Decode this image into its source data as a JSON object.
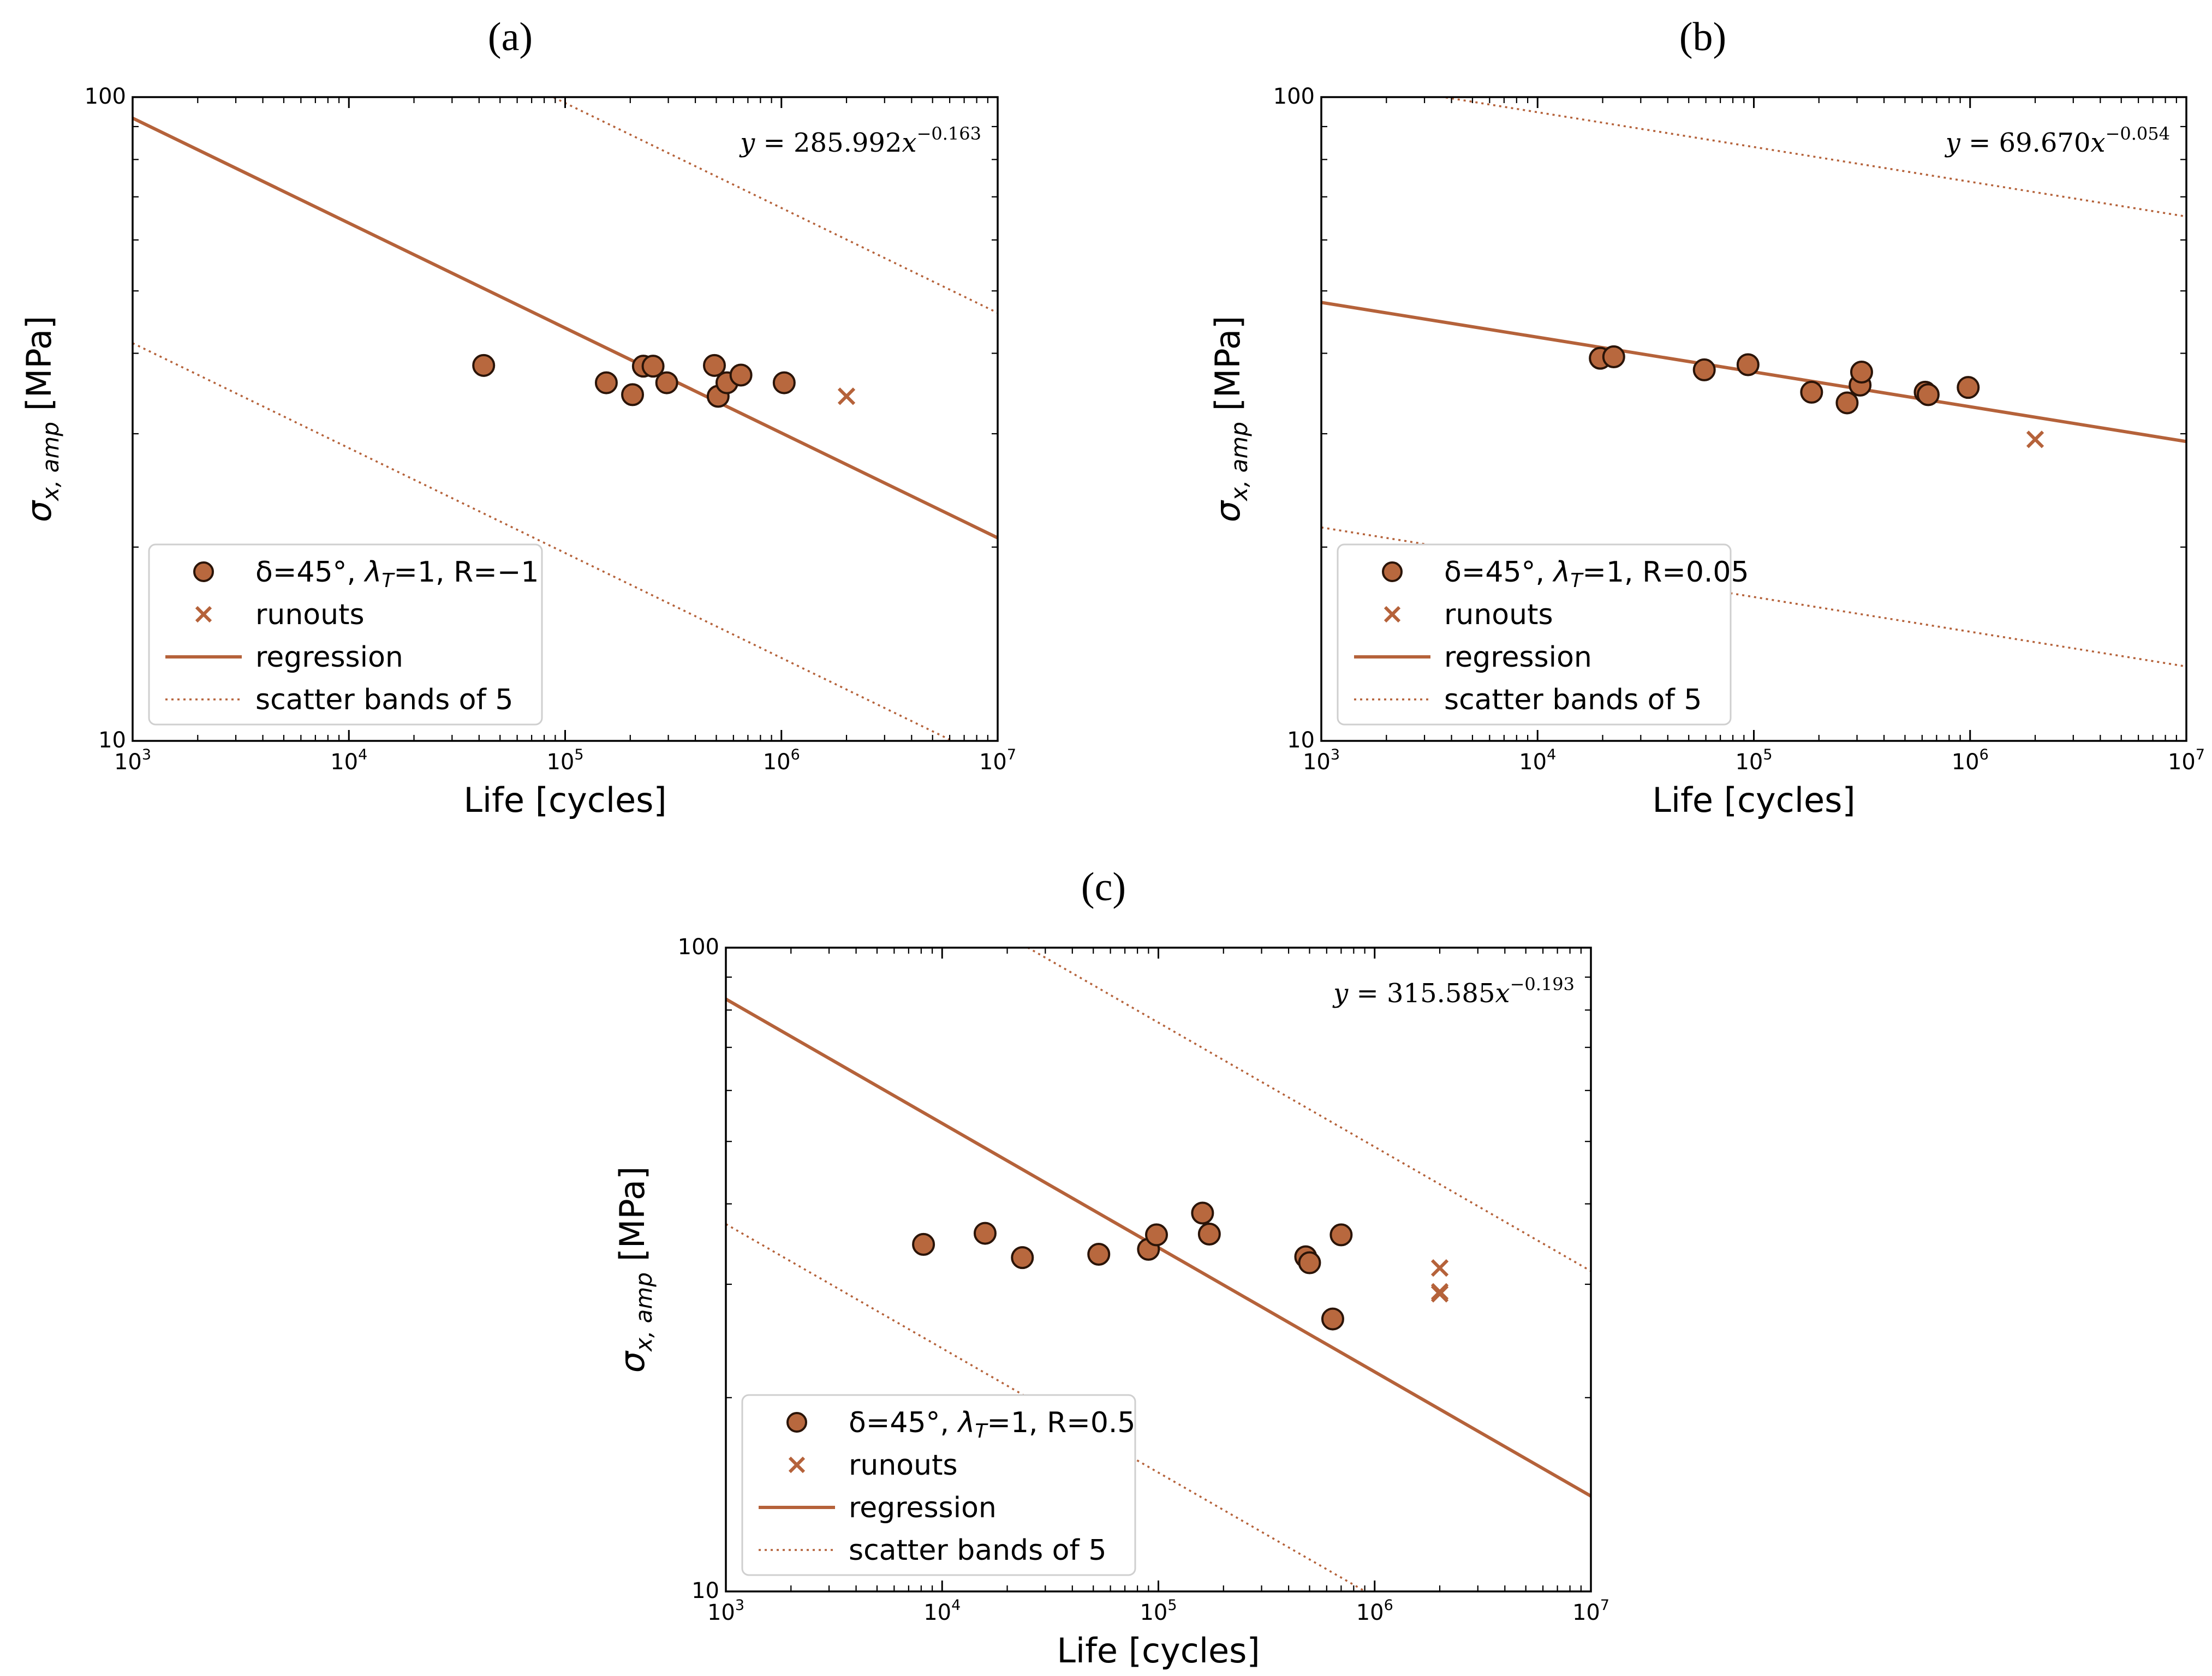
{
  "figure": {
    "series_color": "#b5623a",
    "point_fill": "#b8683e",
    "point_edge": "#2a1408"
  },
  "chart_data": [
    {
      "type": "scatter",
      "panel_label": "(a)",
      "xscale": "log",
      "yscale": "log",
      "xlim": [
        1000,
        10000000
      ],
      "ylim": [
        10,
        100
      ],
      "xlabel": "Life [cycles]",
      "ylabel": {
        "base": "σ",
        "sub": "x, amp",
        "unit": " [MPa]"
      },
      "xticks": [
        {
          "base": "10",
          "exp": "3"
        },
        {
          "base": "10",
          "exp": "4"
        },
        {
          "base": "10",
          "exp": "5"
        },
        {
          "base": "10",
          "exp": "6"
        },
        {
          "base": "10",
          "exp": "7"
        }
      ],
      "yticks": [
        "100",
        "10"
      ],
      "equation": {
        "lhs": "y",
        "mid": " = 285.992",
        "var": "x",
        "exp": "−0.163"
      },
      "regression": {
        "a": 285.992,
        "b": -0.163,
        "scatter_factor": 5
      },
      "series": [
        {
          "name": "tests",
          "label": {
            "pre": "δ=45°, ",
            "sym": "λ",
            "sub": "T",
            "post": "=1, R=−1"
          },
          "points": [
            [
              42000,
              38.3
            ],
            [
              155000,
              36.0
            ],
            [
              205000,
              34.5
            ],
            [
              230000,
              38.2
            ],
            [
              255000,
              38.2
            ],
            [
              295000,
              36.0
            ],
            [
              490000,
              38.3
            ],
            [
              510000,
              34.3
            ],
            [
              560000,
              36.0
            ],
            [
              650000,
              37.0
            ],
            [
              1030000,
              36.0
            ]
          ]
        },
        {
          "name": "runouts",
          "label": "runouts",
          "points": [
            [
              2000000,
              34.3
            ]
          ]
        }
      ],
      "legend": {
        "regression": "regression",
        "bands": "scatter bands of 5",
        "position": "lower-left"
      }
    },
    {
      "type": "scatter",
      "panel_label": "(b)",
      "xscale": "log",
      "yscale": "log",
      "xlim": [
        1000,
        10000000
      ],
      "ylim": [
        10,
        100
      ],
      "xlabel": "Life [cycles]",
      "ylabel": {
        "base": "σ",
        "sub": "x, amp",
        "unit": " [MPa]"
      },
      "xticks": [
        {
          "base": "10",
          "exp": "3"
        },
        {
          "base": "10",
          "exp": "4"
        },
        {
          "base": "10",
          "exp": "5"
        },
        {
          "base": "10",
          "exp": "6"
        },
        {
          "base": "10",
          "exp": "7"
        }
      ],
      "yticks": [
        "100",
        "10"
      ],
      "equation": {
        "lhs": "y",
        "mid": " = 69.670",
        "var": "x",
        "exp": "−0.054"
      },
      "regression": {
        "a": 69.67,
        "b": -0.054,
        "scatter_factor": 5
      },
      "series": [
        {
          "name": "tests",
          "label": {
            "pre": "δ=45°, ",
            "sym": "λ",
            "sub": "T",
            "post": "=1, R=0.05"
          },
          "points": [
            [
              19500,
              39.3
            ],
            [
              22500,
              39.5
            ],
            [
              59000,
              37.7
            ],
            [
              94000,
              38.4
            ],
            [
              185000,
              34.8
            ],
            [
              270000,
              33.5
            ],
            [
              310000,
              35.7
            ],
            [
              315000,
              37.4
            ],
            [
              620000,
              34.8
            ],
            [
              640000,
              34.5
            ],
            [
              980000,
              35.4
            ]
          ]
        },
        {
          "name": "runouts",
          "label": "runouts",
          "points": [
            [
              2000000,
              29.4
            ]
          ]
        }
      ],
      "legend": {
        "regression": "regression",
        "bands": "scatter bands of 5",
        "position": "lower-left"
      }
    },
    {
      "type": "scatter",
      "panel_label": "(c)",
      "xscale": "log",
      "yscale": "log",
      "xlim": [
        1000,
        10000000
      ],
      "ylim": [
        10,
        100
      ],
      "xlabel": "Life [cycles]",
      "ylabel": {
        "base": "σ",
        "sub": "x, amp",
        "unit": " [MPa]"
      },
      "xticks": [
        {
          "base": "10",
          "exp": "3"
        },
        {
          "base": "10",
          "exp": "4"
        },
        {
          "base": "10",
          "exp": "5"
        },
        {
          "base": "10",
          "exp": "6"
        },
        {
          "base": "10",
          "exp": "7"
        }
      ],
      "yticks": [
        "100",
        "10"
      ],
      "equation": {
        "lhs": "y",
        "mid": " = 315.585",
        "var": "x",
        "exp": "−0.193"
      },
      "regression": {
        "a": 315.585,
        "b": -0.193,
        "scatter_factor": 5
      },
      "series": [
        {
          "name": "tests",
          "label": {
            "pre": "δ=45°, ",
            "sym": "λ",
            "sub": "T",
            "post": "=1, R=0.5"
          },
          "points": [
            [
              8200,
              34.6
            ],
            [
              15800,
              36.0
            ],
            [
              23500,
              33.0
            ],
            [
              53000,
              33.4
            ],
            [
              90000,
              34.0
            ],
            [
              98000,
              35.8
            ],
            [
              160000,
              38.7
            ],
            [
              172000,
              35.9
            ],
            [
              480000,
              33.1
            ],
            [
              500000,
              32.4
            ],
            [
              640000,
              26.5
            ],
            [
              700000,
              35.8
            ]
          ]
        },
        {
          "name": "runouts",
          "label": "runouts",
          "points": [
            [
              2000000,
              31.8
            ],
            [
              2000000,
              29.2
            ],
            [
              2000000,
              29.0
            ]
          ]
        }
      ],
      "legend": {
        "regression": "regression",
        "bands": "scatter bands of 5",
        "position": "lower-left"
      }
    }
  ]
}
